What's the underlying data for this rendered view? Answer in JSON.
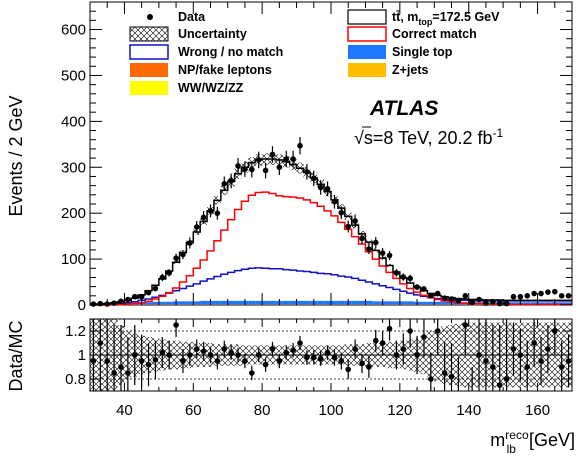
{
  "chart_data": [
    {
      "type": "histogram",
      "panel": "main",
      "ylabel": "Events / 2 GeV",
      "xlim": [
        30,
        170
      ],
      "ylim": [
        0,
        660
      ],
      "yticks": [
        0,
        100,
        200,
        300,
        400,
        500,
        600
      ],
      "bin_width": 2,
      "bin_edges_start": 30,
      "atlas_label": "ATLAS",
      "energy_label": "√s=8 TeV, 20.2 fb",
      "energy_superscript": "-1",
      "legend": [
        {
          "label": "Data",
          "style": "marker",
          "color": "#000000"
        },
        {
          "label": "tt̄, m",
          "sub": "top",
          "suffix": "=172.5 GeV",
          "style": "box-outline",
          "color": "#000000"
        },
        {
          "label": "Uncertainty",
          "style": "hatch",
          "color": "#000000"
        },
        {
          "label": "Correct match",
          "style": "box-outline",
          "color": "#ff0000"
        },
        {
          "label": "Wrong / no match",
          "style": "box-outline",
          "color": "#1010c8"
        },
        {
          "label": "Single top",
          "style": "fill",
          "color": "#1e78ff"
        },
        {
          "label": "NP/fake leptons",
          "style": "fill",
          "color": "#ff6a00"
        },
        {
          "label": "Z+jets",
          "style": "fill",
          "color": "#ffbf00"
        },
        {
          "label": "WW/WZ/ZZ",
          "style": "fill",
          "color": "#ffff00"
        }
      ],
      "series": [
        {
          "name": "tt̄, m_top=172.5 GeV",
          "color": "#000000",
          "values": [
            2,
            2,
            3,
            5,
            7,
            10,
            15,
            22,
            31,
            43,
            57,
            74,
            93,
            114,
            136,
            159,
            182,
            205,
            228,
            250,
            269,
            286,
            300,
            310,
            316,
            318,
            318,
            316,
            312,
            306,
            298,
            289,
            277,
            263,
            247,
            229,
            211,
            193,
            174,
            155,
            137,
            119,
            102,
            86,
            72,
            59,
            48,
            39,
            31,
            25,
            21,
            18,
            16,
            14,
            13,
            12,
            12,
            11,
            11,
            11,
            10,
            10,
            10,
            10,
            10,
            10,
            10,
            10,
            10,
            10
          ]
        },
        {
          "name": "Correct match",
          "color": "#ff0000",
          "values": [
            0,
            0,
            0,
            1,
            1,
            2,
            3,
            5,
            8,
            13,
            19,
            27,
            37,
            50,
            64,
            80,
            98,
            118,
            140,
            163,
            186,
            208,
            226,
            239,
            245,
            246,
            243,
            238,
            236,
            235,
            233,
            229,
            223,
            215,
            205,
            194,
            180,
            165,
            149,
            133,
            116,
            100,
            85,
            71,
            58,
            46,
            36,
            28,
            21,
            16,
            12,
            9,
            7,
            5,
            4,
            3,
            3,
            2,
            2,
            2,
            2,
            1,
            1,
            1,
            1,
            1,
            1,
            1,
            1,
            1
          ]
        },
        {
          "name": "Wrong / no match",
          "color": "#1010c8",
          "values": [
            2,
            2,
            3,
            3,
            4,
            5,
            7,
            10,
            13,
            17,
            21,
            26,
            31,
            36,
            41,
            46,
            52,
            57,
            62,
            67,
            71,
            75,
            78,
            80,
            81,
            80,
            79,
            79,
            77,
            76,
            74,
            73,
            71,
            69,
            68,
            66,
            63,
            61,
            58,
            54,
            50,
            46,
            42,
            38,
            34,
            30,
            26,
            22,
            19,
            16,
            14,
            12,
            11,
            10,
            10,
            9,
            9,
            9,
            9,
            9,
            9,
            9,
            9,
            9,
            9,
            9,
            9,
            9,
            9,
            9
          ]
        },
        {
          "name": "Single top",
          "color": "#1e78ff",
          "values": [
            2,
            2,
            3,
            3,
            3,
            4,
            4,
            5,
            5,
            6,
            6,
            6,
            7,
            7,
            7,
            7,
            8,
            8,
            8,
            8,
            8,
            8,
            8,
            8,
            8,
            8,
            8,
            8,
            8,
            8,
            8,
            8,
            8,
            8,
            8,
            8,
            8,
            8,
            8,
            8,
            8,
            7,
            7,
            7,
            7,
            7,
            7,
            6,
            6,
            6,
            6,
            6,
            5,
            5,
            5,
            5,
            5,
            5,
            5,
            5,
            5,
            5,
            5,
            5,
            5,
            5,
            5,
            5,
            5,
            5
          ]
        },
        {
          "name": "NP/fake leptons",
          "color": "#ff6a00",
          "values": [
            1,
            1,
            1,
            1,
            1,
            1,
            1,
            1,
            1,
            1,
            1,
            1,
            1,
            1,
            1,
            1,
            1,
            1,
            1,
            1,
            1,
            1,
            1,
            1,
            1,
            1,
            1,
            1,
            1,
            1,
            1,
            1,
            1,
            1,
            1,
            1,
            1,
            1,
            1,
            1,
            1,
            1,
            1,
            1,
            1,
            1,
            1,
            1,
            1,
            1,
            1,
            1,
            1,
            1,
            1,
            1,
            1,
            1,
            1,
            1,
            1,
            1,
            1,
            1,
            1,
            1,
            1,
            1,
            1,
            1
          ]
        },
        {
          "name": "Z+jets",
          "color": "#ffbf00",
          "values": [
            0,
            0,
            0,
            0,
            0,
            0,
            0,
            0,
            0,
            0,
            0,
            0,
            0,
            0,
            0,
            0,
            0,
            0,
            0,
            0,
            0,
            0,
            0,
            0,
            0,
            0,
            0,
            0,
            0,
            0,
            0,
            0,
            0,
            0,
            0,
            0,
            0,
            0,
            0,
            0,
            0,
            0,
            0,
            0,
            0,
            0,
            0,
            0,
            0,
            0,
            0,
            0,
            0,
            0,
            0,
            0,
            0,
            0,
            0,
            0,
            0,
            0,
            0,
            0,
            0,
            0,
            0,
            0,
            0,
            0
          ]
        },
        {
          "name": "WW/WZ/ZZ",
          "color": "#ffff00",
          "values": [
            0,
            0,
            0,
            0,
            0,
            0,
            0,
            0,
            0,
            0,
            0,
            0,
            0,
            0,
            0,
            0,
            0,
            0,
            0,
            0,
            0,
            0,
            0,
            0,
            0,
            0,
            0,
            0,
            0,
            0,
            0,
            0,
            0,
            0,
            0,
            0,
            0,
            0,
            0,
            0,
            0,
            0,
            0,
            0,
            0,
            0,
            0,
            0,
            0,
            0,
            0,
            0,
            0,
            0,
            0,
            0,
            0,
            0,
            0,
            0,
            0,
            0,
            0,
            0,
            0,
            0,
            0,
            0,
            0,
            0
          ]
        },
        {
          "name": "Data",
          "color": "#000000",
          "values": [
            2,
            3,
            2,
            4,
            8,
            12,
            18,
            18,
            27,
            36,
            60,
            70,
            102,
            110,
            135,
            170,
            191,
            205,
            200,
            264,
            270,
            303,
            296,
            295,
            316,
            293,
            328,
            300,
            318,
            318,
            347,
            290,
            276,
            256,
            253,
            225,
            201,
            171,
            183,
            145,
            122,
            136,
            113,
            108,
            70,
            61,
            58,
            39,
            35,
            20,
            25,
            15,
            13,
            9,
            20,
            6,
            12,
            4,
            7,
            3,
            3,
            18,
            18,
            20,
            25,
            25,
            28,
            29,
            20,
            20
          ],
          "errors": [
            2,
            2,
            2,
            2,
            3,
            4,
            4,
            4,
            5,
            6,
            8,
            8,
            10,
            10,
            12,
            13,
            14,
            14,
            14,
            16,
            16,
            17,
            17,
            17,
            18,
            17,
            18,
            17,
            18,
            18,
            19,
            17,
            17,
            16,
            16,
            15,
            14,
            13,
            14,
            12,
            11,
            12,
            11,
            10,
            8,
            8,
            8,
            6,
            6,
            5,
            5,
            4,
            4,
            3,
            5,
            3,
            4,
            2,
            3,
            2,
            2,
            4,
            4,
            5,
            5,
            5,
            5,
            5,
            5,
            5
          ]
        }
      ]
    },
    {
      "type": "ratio",
      "panel": "ratio",
      "ylabel": "Data/MC",
      "xlabel": "m",
      "xlabel_superscript": "reco",
      "xlabel_subscript": "lb",
      "xlabel_unit": " [GeV]",
      "xlim": [
        30,
        170
      ],
      "ylim": [
        0.7,
        1.3
      ],
      "yticks": [
        0.8,
        1,
        1.2
      ],
      "ytick_labels": [
        "0.8",
        "1",
        "1.2"
      ],
      "xticks": [
        40,
        60,
        80,
        100,
        120,
        140,
        160
      ],
      "uncertainty_band": [
        0.3,
        0.3,
        0.3,
        0.3,
        0.25,
        0.2,
        0.18,
        0.16,
        0.15,
        0.14,
        0.13,
        0.12,
        0.12,
        0.11,
        0.11,
        0.1,
        0.1,
        0.1,
        0.09,
        0.09,
        0.09,
        0.09,
        0.08,
        0.08,
        0.08,
        0.08,
        0.08,
        0.08,
        0.08,
        0.08,
        0.08,
        0.08,
        0.08,
        0.08,
        0.08,
        0.08,
        0.08,
        0.09,
        0.09,
        0.09,
        0.1,
        0.1,
        0.1,
        0.11,
        0.11,
        0.12,
        0.13,
        0.14,
        0.16,
        0.2,
        0.22,
        0.24,
        0.25,
        0.26,
        0.27,
        0.27,
        0.27,
        0.27,
        0.27,
        0.27,
        0.27,
        0.27,
        0.27,
        0.27,
        0.27,
        0.27,
        0.27,
        0.27,
        0.27,
        0.27
      ],
      "ratio_values": [
        0.95,
        1.1,
        0.95,
        0.85,
        0.9,
        0.85,
        1.0,
        0.95,
        0.92,
        0.96,
        1.02,
        1.0,
        1.25,
        0.95,
        1.0,
        1.05,
        1.03,
        1.0,
        0.95,
        1.05,
        1.02,
        1.0,
        0.95,
        0.85,
        1.0,
        0.92,
        1.05,
        0.95,
        1.02,
        1.04,
        1.1,
        0.98,
        0.98,
        0.97,
        1.02,
        0.98,
        0.95,
        0.88,
        1.05,
        0.93,
        0.9,
        1.12,
        1.1,
        1.22,
        1.0,
        1.05,
        1.2,
        1.0,
        1.15,
        0.8,
        1.2,
        0.85,
        0.82,
        0.65,
        1.25,
        0.5,
        1.0,
        0.95,
        0.9,
        0.75,
        0.8,
        1.05,
        1.0,
        0.9,
        1.1,
        0.95,
        1.05,
        1.2,
        0.9,
        0.95
      ],
      "ratio_errors": [
        0.5,
        0.45,
        0.45,
        0.4,
        0.35,
        0.3,
        0.25,
        0.22,
        0.18,
        0.16,
        0.13,
        0.12,
        0.1,
        0.1,
        0.09,
        0.08,
        0.08,
        0.07,
        0.07,
        0.07,
        0.06,
        0.06,
        0.06,
        0.06,
        0.06,
        0.06,
        0.06,
        0.06,
        0.06,
        0.06,
        0.06,
        0.06,
        0.06,
        0.06,
        0.06,
        0.07,
        0.07,
        0.08,
        0.08,
        0.08,
        0.09,
        0.09,
        0.1,
        0.1,
        0.12,
        0.13,
        0.14,
        0.16,
        0.17,
        0.22,
        0.2,
        0.26,
        0.28,
        0.33,
        0.25,
        0.4,
        0.3,
        0.4,
        0.35,
        0.5,
        0.5,
        0.22,
        0.22,
        0.22,
        0.2,
        0.2,
        0.2,
        0.2,
        0.22,
        0.22
      ]
    }
  ]
}
